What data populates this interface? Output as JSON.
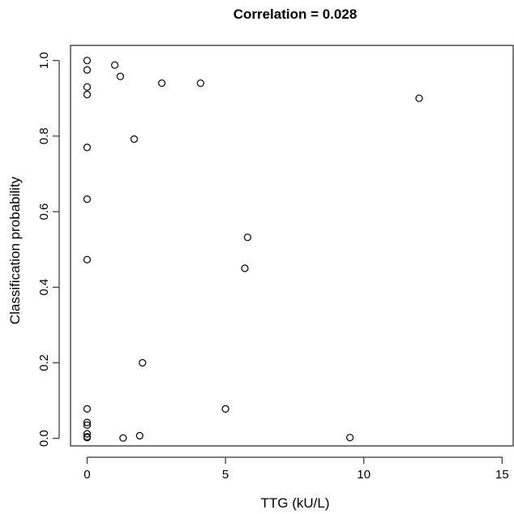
{
  "chart_data": {
    "type": "scatter",
    "title": "Correlation = 0.028",
    "xlabel": "TTG (kU/L)",
    "ylabel": "Classification probability",
    "xlim": [
      -0.6,
      15.4
    ],
    "ylim": [
      -0.02,
      1.04
    ],
    "x_ticks": [
      0,
      5,
      10,
      15
    ],
    "y_ticks": [
      0.0,
      0.2,
      0.4,
      0.6,
      0.8,
      1.0
    ],
    "x_tick_labels": [
      "0",
      "5",
      "10",
      "15"
    ],
    "y_tick_labels": [
      "0.0",
      "0.2",
      "0.4",
      "0.6",
      "0.8",
      "1.0"
    ],
    "marker": "open-circle",
    "grid": false,
    "legend": false,
    "series": [
      {
        "points": [
          [
            0,
            1.0
          ],
          [
            0,
            0.975
          ],
          [
            0,
            0.93
          ],
          [
            0,
            0.91
          ],
          [
            0,
            0.77
          ],
          [
            0,
            0.633
          ],
          [
            0,
            0.473
          ],
          [
            0,
            0.078
          ],
          [
            0,
            0.042
          ],
          [
            0,
            0.035
          ],
          [
            0,
            0.012
          ],
          [
            0,
            0.004
          ],
          [
            0,
            0.002
          ],
          [
            1.0,
            0.988
          ],
          [
            1.2,
            0.958
          ],
          [
            1.7,
            0.792
          ],
          [
            2.7,
            0.94
          ],
          [
            4.1,
            0.94
          ],
          [
            12.0,
            0.9
          ],
          [
            5.8,
            0.532
          ],
          [
            5.7,
            0.45
          ],
          [
            2.0,
            0.2
          ],
          [
            5.0,
            0.078
          ],
          [
            1.3,
            0.001
          ],
          [
            1.9,
            0.007
          ],
          [
            9.5,
            0.002
          ]
        ]
      }
    ]
  }
}
